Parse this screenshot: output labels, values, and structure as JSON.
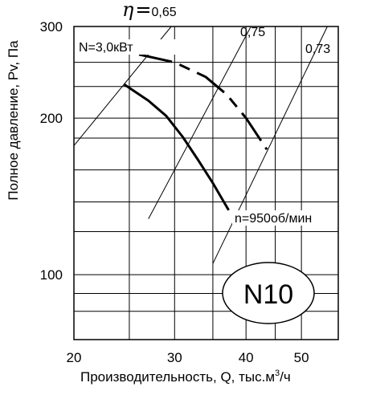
{
  "chart_data": {
    "type": "line",
    "xscale": "log",
    "yscale": "log",
    "xlabel": "Производительность, Q, тыс.м",
    "xlabel_sup": "3",
    "xlabel_tail": "/ч",
    "ylabel": "Полное давление, Pv, Па",
    "xlim": [
      20,
      58
    ],
    "ylim": [
      75,
      300
    ],
    "x_ticks": [
      20,
      30,
      40,
      50
    ],
    "x_tick_labels": [
      "20",
      "30",
      "40",
      "50"
    ],
    "y_ticks": [
      100,
      200,
      300
    ],
    "y_tick_labels": [
      "100",
      "200",
      "300"
    ],
    "x_grid": [
      20,
      25,
      30,
      35,
      40,
      45,
      50,
      58
    ],
    "y_grid": [
      75,
      85,
      92,
      100,
      121,
      138,
      159,
      183,
      200,
      230,
      256,
      300
    ],
    "grid": true,
    "series": [
      {
        "name": "n=950об/мин",
        "style": "solid",
        "points": [
          [
            24.5,
            232
          ],
          [
            27,
            216
          ],
          [
            29,
            202
          ],
          [
            31,
            184
          ],
          [
            33,
            166
          ],
          [
            35,
            150
          ],
          [
            37.3,
            133
          ]
        ]
      },
      {
        "name": "N=3,0кВт",
        "style": "dashed",
        "points": [
          [
            26,
            265
          ],
          [
            30,
            256
          ],
          [
            34,
            240
          ],
          [
            37,
            222
          ],
          [
            40,
            200
          ],
          [
            43.5,
            174
          ]
        ]
      }
    ],
    "efficiency_lines": [
      {
        "label": "0,65",
        "prefix": "η=",
        "from": [
          20,
          177
        ],
        "to": [
          29.6,
          300
        ]
      },
      {
        "label": "0,75",
        "from": [
          27,
          128
        ],
        "to": [
          40.8,
          300
        ]
      },
      {
        "label": "0,73",
        "from": [
          35,
          105
        ],
        "to": [
          55.5,
          300
        ]
      }
    ],
    "annotations": {
      "power": "N=3,0кВт",
      "speed": "n=950об/мин"
    },
    "badge": "N10"
  }
}
